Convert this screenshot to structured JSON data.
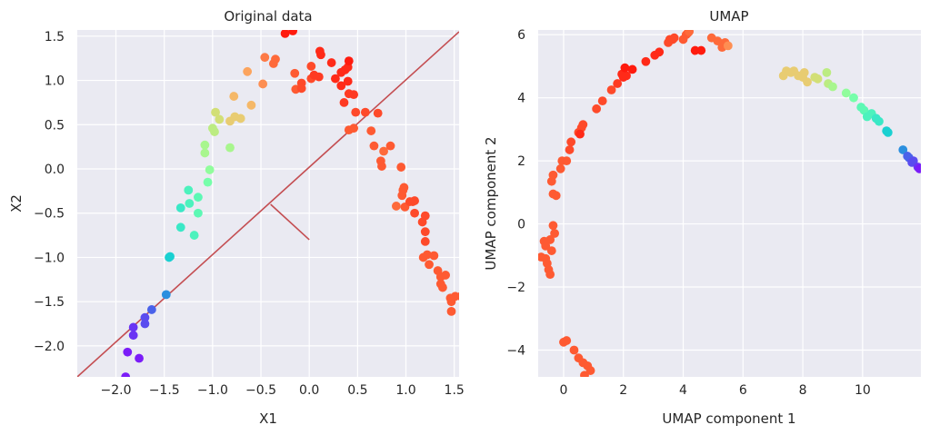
{
  "chart_data": [
    {
      "type": "scatter",
      "title": "Original data",
      "xlabel": "X1",
      "ylabel": "X2",
      "xlim": [
        -2.4,
        1.55
      ],
      "ylim": [
        -2.35,
        1.57
      ],
      "grid": true,
      "xticks": [
        -2.0,
        -1.5,
        -1.0,
        -0.5,
        0.0,
        0.5,
        1.0,
        1.5
      ],
      "xtick_labels": [
        "−2.0",
        "−1.5",
        "−1.0",
        "−0.5",
        "0.0",
        "0.5",
        "1.0",
        "1.5"
      ],
      "yticks": [
        -2.0,
        -1.5,
        -1.0,
        -0.5,
        0.0,
        0.5,
        1.0,
        1.5
      ],
      "ytick_labels": [
        "−2.0",
        "−1.5",
        "−1.0",
        "−0.5",
        "0.0",
        "0.5",
        "1.0",
        "1.5"
      ],
      "line_color": "#c44e52",
      "lines": [
        {
          "x": [
            -2.4,
            1.55
          ],
          "y": [
            -2.35,
            1.55
          ]
        },
        {
          "x": [
            -0.4,
            0.0
          ],
          "y": [
            -0.4,
            -0.8
          ]
        }
      ],
      "points": [
        {
          "x": -1.9,
          "y": -2.35,
          "c": "#7b1cf8"
        },
        {
          "x": -1.88,
          "y": -2.07,
          "c": "#7b1cf8"
        },
        {
          "x": -1.76,
          "y": -2.14,
          "c": "#7b1cf8"
        },
        {
          "x": -1.82,
          "y": -1.88,
          "c": "#6a34f4"
        },
        {
          "x": -1.82,
          "y": -1.79,
          "c": "#6a34f4"
        },
        {
          "x": -1.7,
          "y": -1.75,
          "c": "#5a4cef"
        },
        {
          "x": -1.7,
          "y": -1.68,
          "c": "#5a4cef"
        },
        {
          "x": -1.63,
          "y": -1.59,
          "c": "#4a62ea"
        },
        {
          "x": -1.48,
          "y": -1.42,
          "c": "#2b8fdf"
        },
        {
          "x": -1.44,
          "y": -0.99,
          "c": "#1ad0d1"
        },
        {
          "x": -1.45,
          "y": -1.0,
          "c": "#1ad0d1"
        },
        {
          "x": -1.33,
          "y": -0.66,
          "c": "#3ae8c6"
        },
        {
          "x": -1.33,
          "y": -0.44,
          "c": "#3ae8c6"
        },
        {
          "x": -1.24,
          "y": -0.39,
          "c": "#4cf2bd"
        },
        {
          "x": -1.25,
          "y": -0.24,
          "c": "#4cf2bd"
        },
        {
          "x": -1.19,
          "y": -0.75,
          "c": "#4cf2bd"
        },
        {
          "x": -1.15,
          "y": -0.5,
          "c": "#5cf8b4"
        },
        {
          "x": -1.15,
          "y": -0.32,
          "c": "#5cf8b4"
        },
        {
          "x": -1.05,
          "y": -0.15,
          "c": "#76feaa"
        },
        {
          "x": -1.03,
          "y": -0.01,
          "c": "#90fd9c"
        },
        {
          "x": -1.08,
          "y": 0.18,
          "c": "#a8f68e"
        },
        {
          "x": -1.08,
          "y": 0.27,
          "c": "#a8f68e"
        },
        {
          "x": -1.0,
          "y": 0.46,
          "c": "#bcec82"
        },
        {
          "x": -0.98,
          "y": 0.42,
          "c": "#bcec82"
        },
        {
          "x": -0.97,
          "y": 0.64,
          "c": "#d2df76"
        },
        {
          "x": -0.93,
          "y": 0.56,
          "c": "#d2df76"
        },
        {
          "x": -0.82,
          "y": 0.24,
          "c": "#a8f68e"
        },
        {
          "x": -0.82,
          "y": 0.54,
          "c": "#e8cc72"
        },
        {
          "x": -0.77,
          "y": 0.59,
          "c": "#e8cc72"
        },
        {
          "x": -0.71,
          "y": 0.57,
          "c": "#e8cc72"
        },
        {
          "x": -0.78,
          "y": 0.82,
          "c": "#f5b868"
        },
        {
          "x": -0.6,
          "y": 0.72,
          "c": "#f5b868"
        },
        {
          "x": -0.64,
          "y": 1.1,
          "c": "#fca45e"
        },
        {
          "x": -0.48,
          "y": 0.96,
          "c": "#fd8e52"
        },
        {
          "x": -0.46,
          "y": 1.26,
          "c": "#fd7a46"
        },
        {
          "x": -0.35,
          "y": 1.24,
          "c": "#fe6a3a"
        },
        {
          "x": -0.37,
          "y": 1.19,
          "c": "#fe6a3a"
        },
        {
          "x": -0.25,
          "y": 1.53,
          "c": "#ff1b0e"
        },
        {
          "x": -0.17,
          "y": 1.56,
          "c": "#ff1b0e"
        },
        {
          "x": -0.15,
          "y": 1.08,
          "c": "#fe5a32"
        },
        {
          "x": -0.14,
          "y": 0.9,
          "c": "#fe5a32"
        },
        {
          "x": -0.08,
          "y": 0.97,
          "c": "#fe4a2a"
        },
        {
          "x": -0.08,
          "y": 0.91,
          "c": "#fe4a2a"
        },
        {
          "x": 0.02,
          "y": 1.16,
          "c": "#fe4a2a"
        },
        {
          "x": 0.02,
          "y": 1.02,
          "c": "#fe4a2a"
        },
        {
          "x": 0.05,
          "y": 1.06,
          "c": "#fe3a22"
        },
        {
          "x": 0.11,
          "y": 1.33,
          "c": "#ff2a18"
        },
        {
          "x": 0.12,
          "y": 1.29,
          "c": "#ff2a18"
        },
        {
          "x": 0.1,
          "y": 1.04,
          "c": "#fe3a22"
        },
        {
          "x": 0.23,
          "y": 1.2,
          "c": "#ff2a18"
        },
        {
          "x": 0.27,
          "y": 1.02,
          "c": "#ff2a18"
        },
        {
          "x": 0.33,
          "y": 0.94,
          "c": "#ff2a18"
        },
        {
          "x": 0.33,
          "y": 1.09,
          "c": "#ff2a18"
        },
        {
          "x": 0.37,
          "y": 1.12,
          "c": "#ff2a18"
        },
        {
          "x": 0.4,
          "y": 1.15,
          "c": "#ff2a18"
        },
        {
          "x": 0.41,
          "y": 1.22,
          "c": "#ff1b0e"
        },
        {
          "x": 0.36,
          "y": 0.75,
          "c": "#fe3a22"
        },
        {
          "x": 0.4,
          "y": 0.99,
          "c": "#ff2a18"
        },
        {
          "x": 0.41,
          "y": 0.85,
          "c": "#fe3a22"
        },
        {
          "x": 0.46,
          "y": 0.84,
          "c": "#fe3a22"
        },
        {
          "x": 0.48,
          "y": 0.64,
          "c": "#fe4a2a"
        },
        {
          "x": 0.41,
          "y": 0.44,
          "c": "#fe5a32"
        },
        {
          "x": 0.46,
          "y": 0.46,
          "c": "#fe5a32"
        },
        {
          "x": 0.58,
          "y": 0.64,
          "c": "#fe4a2a"
        },
        {
          "x": 0.64,
          "y": 0.43,
          "c": "#fe5a32"
        },
        {
          "x": 0.71,
          "y": 0.63,
          "c": "#fe4a2a"
        },
        {
          "x": 0.67,
          "y": 0.26,
          "c": "#fe5a32"
        },
        {
          "x": 0.74,
          "y": 0.09,
          "c": "#fe5a32"
        },
        {
          "x": 0.75,
          "y": 0.03,
          "c": "#fe5a32"
        },
        {
          "x": 0.77,
          "y": 0.2,
          "c": "#fe6a3a"
        },
        {
          "x": 0.84,
          "y": 0.26,
          "c": "#fe5a32"
        },
        {
          "x": 0.95,
          "y": 0.02,
          "c": "#fe5a32"
        },
        {
          "x": 0.97,
          "y": -0.24,
          "c": "#fe5a32"
        },
        {
          "x": 0.98,
          "y": -0.21,
          "c": "#fe5a32"
        },
        {
          "x": 0.96,
          "y": -0.3,
          "c": "#fe5a32"
        },
        {
          "x": 0.9,
          "y": -0.42,
          "c": "#fe6a3a"
        },
        {
          "x": 0.99,
          "y": -0.43,
          "c": "#fe5a32"
        },
        {
          "x": 1.04,
          "y": -0.37,
          "c": "#fe4a2a"
        },
        {
          "x": 1.07,
          "y": -0.37,
          "c": "#fe4a2a"
        },
        {
          "x": 1.09,
          "y": -0.36,
          "c": "#fe4a2a"
        },
        {
          "x": 1.09,
          "y": -0.5,
          "c": "#fe4a2a"
        },
        {
          "x": 1.17,
          "y": -0.6,
          "c": "#fe4a2a"
        },
        {
          "x": 1.2,
          "y": -0.53,
          "c": "#fe4a2a"
        },
        {
          "x": 1.2,
          "y": -0.71,
          "c": "#fe4a2a"
        },
        {
          "x": 1.2,
          "y": -0.82,
          "c": "#fe4a2a"
        },
        {
          "x": 1.18,
          "y": -1.0,
          "c": "#fe5a32"
        },
        {
          "x": 1.22,
          "y": -0.97,
          "c": "#fe5a32"
        },
        {
          "x": 1.24,
          "y": -1.08,
          "c": "#fe5a32"
        },
        {
          "x": 1.29,
          "y": -0.98,
          "c": "#fe5a32"
        },
        {
          "x": 1.33,
          "y": -1.15,
          "c": "#fe5a32"
        },
        {
          "x": 1.36,
          "y": -1.3,
          "c": "#fe5a32"
        },
        {
          "x": 1.36,
          "y": -1.22,
          "c": "#fe5a32"
        },
        {
          "x": 1.38,
          "y": -1.34,
          "c": "#fe5a32"
        },
        {
          "x": 1.41,
          "y": -1.2,
          "c": "#fe5a32"
        },
        {
          "x": 1.46,
          "y": -1.46,
          "c": "#fe5a32"
        },
        {
          "x": 1.47,
          "y": -1.5,
          "c": "#fe5a32"
        },
        {
          "x": 1.47,
          "y": -1.61,
          "c": "#fe5a32"
        },
        {
          "x": 1.51,
          "y": -1.44,
          "c": "#fe5a32"
        },
        {
          "x": 1.57,
          "y": -1.44,
          "c": "#fe5a32"
        }
      ]
    },
    {
      "type": "scatter",
      "title": "UMAP",
      "xlabel": "UMAP component 1",
      "ylabel": "UMAP component 2",
      "xlim": [
        -0.85,
        11.95
      ],
      "ylim": [
        -4.85,
        6.15
      ],
      "grid": true,
      "xticks": [
        0,
        2,
        4,
        6,
        8,
        10
      ],
      "xtick_labels": [
        "0",
        "2",
        "4",
        "6",
        "8",
        "10"
      ],
      "yticks": [
        -4,
        -2,
        0,
        2,
        4,
        6
      ],
      "ytick_labels": [
        "−4",
        "−2",
        "0",
        "2",
        "4",
        "6"
      ],
      "points": [
        {
          "x": -0.35,
          "y": -0.05,
          "c": "#fe5a32"
        },
        {
          "x": -0.3,
          "y": -0.3,
          "c": "#fe5a32"
        },
        {
          "x": -0.45,
          "y": -0.5,
          "c": "#fe5a32"
        },
        {
          "x": -0.6,
          "y": -0.7,
          "c": "#fe5a32"
        },
        {
          "x": -0.75,
          "y": -1.05,
          "c": "#fe5a32"
        },
        {
          "x": -0.55,
          "y": -1.25,
          "c": "#fe5a32"
        },
        {
          "x": -0.5,
          "y": -1.45,
          "c": "#fe5a32"
        },
        {
          "x": -0.45,
          "y": -1.6,
          "c": "#fe5a32"
        },
        {
          "x": -0.6,
          "y": -1.1,
          "c": "#fe5a32"
        },
        {
          "x": -0.4,
          "y": -0.85,
          "c": "#fe5a32"
        },
        {
          "x": -0.65,
          "y": -0.55,
          "c": "#fe5a32"
        },
        {
          "x": 0.0,
          "y": -3.75,
          "c": "#fe5a32"
        },
        {
          "x": 0.1,
          "y": -3.7,
          "c": "#fe5a32"
        },
        {
          "x": 0.35,
          "y": -4.0,
          "c": "#fe5a32"
        },
        {
          "x": 0.5,
          "y": -4.25,
          "c": "#fe5a32"
        },
        {
          "x": 0.65,
          "y": -4.4,
          "c": "#fe5a32"
        },
        {
          "x": 0.8,
          "y": -4.5,
          "c": "#fe5a32"
        },
        {
          "x": 0.9,
          "y": -4.65,
          "c": "#fe5a32"
        },
        {
          "x": 0.7,
          "y": -4.8,
          "c": "#fe5a32"
        },
        {
          "x": -0.35,
          "y": 0.95,
          "c": "#fe5a32"
        },
        {
          "x": -0.25,
          "y": 0.9,
          "c": "#fe5a32"
        },
        {
          "x": -0.4,
          "y": 1.35,
          "c": "#fe5a32"
        },
        {
          "x": -0.35,
          "y": 1.55,
          "c": "#fe5a32"
        },
        {
          "x": -0.1,
          "y": 1.75,
          "c": "#fe5a32"
        },
        {
          "x": -0.05,
          "y": 2.0,
          "c": "#fe5a32"
        },
        {
          "x": 0.1,
          "y": 2.0,
          "c": "#fe5a32"
        },
        {
          "x": 0.2,
          "y": 2.35,
          "c": "#fe4a2a"
        },
        {
          "x": 0.25,
          "y": 2.6,
          "c": "#fe4a2a"
        },
        {
          "x": 0.5,
          "y": 2.9,
          "c": "#fe4a2a"
        },
        {
          "x": 0.6,
          "y": 3.05,
          "c": "#fe4a2a"
        },
        {
          "x": 0.65,
          "y": 3.15,
          "c": "#fe4a2a"
        },
        {
          "x": 0.55,
          "y": 2.85,
          "c": "#ff2a18"
        },
        {
          "x": 1.1,
          "y": 3.65,
          "c": "#fe4a2a"
        },
        {
          "x": 1.3,
          "y": 3.9,
          "c": "#fe4a2a"
        },
        {
          "x": 1.6,
          "y": 4.25,
          "c": "#fe4a2a"
        },
        {
          "x": 1.8,
          "y": 4.45,
          "c": "#fe3a22"
        },
        {
          "x": 1.95,
          "y": 4.75,
          "c": "#ff2a18"
        },
        {
          "x": 2.0,
          "y": 4.65,
          "c": "#ff2a18"
        },
        {
          "x": 2.1,
          "y": 4.7,
          "c": "#ff2a18"
        },
        {
          "x": 2.05,
          "y": 4.95,
          "c": "#ff1b0e"
        },
        {
          "x": 2.3,
          "y": 4.9,
          "c": "#ff1b0e"
        },
        {
          "x": 2.75,
          "y": 5.15,
          "c": "#ff2a18"
        },
        {
          "x": 3.05,
          "y": 5.35,
          "c": "#ff2a18"
        },
        {
          "x": 3.2,
          "y": 5.45,
          "c": "#ff2a18"
        },
        {
          "x": 3.5,
          "y": 5.75,
          "c": "#fe4a2a"
        },
        {
          "x": 3.55,
          "y": 5.85,
          "c": "#fe4a2a"
        },
        {
          "x": 3.65,
          "y": 5.85,
          "c": "#fe4a2a"
        },
        {
          "x": 3.7,
          "y": 5.9,
          "c": "#fe4a2a"
        },
        {
          "x": 4.0,
          "y": 5.85,
          "c": "#fe5a32"
        },
        {
          "x": 4.1,
          "y": 6.0,
          "c": "#fe5a32"
        },
        {
          "x": 4.15,
          "y": 6.05,
          "c": "#fe5a32"
        },
        {
          "x": 4.2,
          "y": 6.1,
          "c": "#fe6a3a"
        },
        {
          "x": 4.4,
          "y": 5.5,
          "c": "#ff1b0e"
        },
        {
          "x": 4.6,
          "y": 5.5,
          "c": "#ff1b0e"
        },
        {
          "x": 4.95,
          "y": 5.9,
          "c": "#fe6a3a"
        },
        {
          "x": 5.15,
          "y": 5.8,
          "c": "#fe6a3a"
        },
        {
          "x": 5.3,
          "y": 5.6,
          "c": "#fe6a3a"
        },
        {
          "x": 5.4,
          "y": 5.75,
          "c": "#fe6a3a"
        },
        {
          "x": 5.5,
          "y": 5.65,
          "c": "#fe8e52"
        },
        {
          "x": 7.35,
          "y": 4.7,
          "c": "#e8cc72"
        },
        {
          "x": 7.45,
          "y": 4.85,
          "c": "#e8cc72"
        },
        {
          "x": 7.6,
          "y": 4.8,
          "c": "#e8cc72"
        },
        {
          "x": 7.7,
          "y": 4.85,
          "c": "#e8cc72"
        },
        {
          "x": 7.85,
          "y": 4.7,
          "c": "#e8cc72"
        },
        {
          "x": 8.0,
          "y": 4.65,
          "c": "#e8cc72"
        },
        {
          "x": 8.05,
          "y": 4.8,
          "c": "#e8cc72"
        },
        {
          "x": 8.15,
          "y": 4.5,
          "c": "#e8cc72"
        },
        {
          "x": 8.4,
          "y": 4.65,
          "c": "#d2df76"
        },
        {
          "x": 8.5,
          "y": 4.6,
          "c": "#d2df76"
        },
        {
          "x": 8.8,
          "y": 4.8,
          "c": "#bcec82"
        },
        {
          "x": 8.85,
          "y": 4.45,
          "c": "#bcec82"
        },
        {
          "x": 9.0,
          "y": 4.35,
          "c": "#a8f68e"
        },
        {
          "x": 9.45,
          "y": 4.15,
          "c": "#90fd9c"
        },
        {
          "x": 9.7,
          "y": 4.0,
          "c": "#76feaa"
        },
        {
          "x": 9.95,
          "y": 3.7,
          "c": "#5cf8b4"
        },
        {
          "x": 10.05,
          "y": 3.6,
          "c": "#5cf8b4"
        },
        {
          "x": 10.15,
          "y": 3.4,
          "c": "#4cf2bd"
        },
        {
          "x": 10.3,
          "y": 3.5,
          "c": "#4cf2bd"
        },
        {
          "x": 10.45,
          "y": 3.35,
          "c": "#3ae8c6"
        },
        {
          "x": 10.55,
          "y": 3.25,
          "c": "#3ae8c6"
        },
        {
          "x": 10.8,
          "y": 2.95,
          "c": "#1ad0d1"
        },
        {
          "x": 10.85,
          "y": 2.9,
          "c": "#1ad0d1"
        },
        {
          "x": 11.35,
          "y": 2.35,
          "c": "#2b8fdf"
        },
        {
          "x": 11.5,
          "y": 2.15,
          "c": "#4a62ea"
        },
        {
          "x": 11.55,
          "y": 2.1,
          "c": "#4a62ea"
        },
        {
          "x": 11.65,
          "y": 1.95,
          "c": "#5a4cef"
        },
        {
          "x": 11.7,
          "y": 2.0,
          "c": "#5a4cef"
        },
        {
          "x": 11.85,
          "y": 1.8,
          "c": "#6a34f4"
        },
        {
          "x": 11.9,
          "y": 1.75,
          "c": "#7b1cf8"
        }
      ]
    }
  ]
}
